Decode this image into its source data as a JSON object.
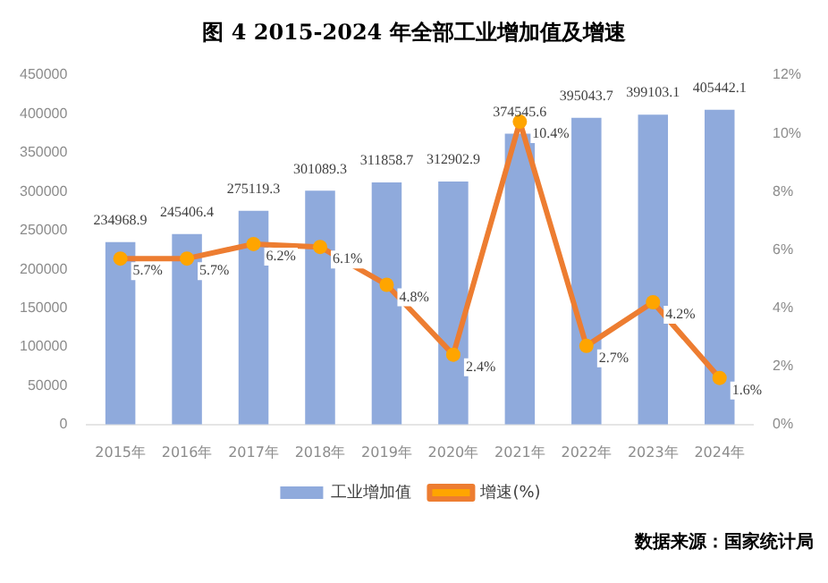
{
  "chart_data": {
    "type": "bar",
    "title": "图 4 2015-2024 年全部工业增加值及增速",
    "categories": [
      "2015年",
      "2016年",
      "2017年",
      "2018年",
      "2019年",
      "2020年",
      "2021年",
      "2022年",
      "2023年",
      "2024年"
    ],
    "series": [
      {
        "name": "工业增加值",
        "color": "#8faadc",
        "values": [
          234968.9,
          245406.4,
          275119.3,
          301089.3,
          311858.7,
          312902.9,
          374545.6,
          395043.7,
          399103.1,
          405442.1
        ]
      },
      {
        "name": "增速(%)",
        "type": "line",
        "axis": "y2",
        "color": "#ed7d31",
        "values": [
          5.7,
          5.7,
          6.2,
          6.1,
          4.8,
          2.4,
          10.4,
          2.7,
          4.2,
          1.6
        ],
        "value_labels": [
          "5.7%",
          "5.7%",
          "6.2%",
          "6.1%",
          "4.8%",
          "2.4%",
          "10.4%",
          "2.7%",
          "4.2%",
          "1.6%"
        ]
      }
    ],
    "ylim": [
      0,
      450000
    ],
    "yticks": [
      0,
      50000,
      100000,
      150000,
      200000,
      250000,
      300000,
      350000,
      400000,
      450000
    ],
    "y2lim": [
      0,
      12
    ],
    "y2ticks": [
      {
        "value": 0,
        "label": "0%"
      },
      {
        "value": 2,
        "label": "2%"
      },
      {
        "value": 4,
        "label": "4%"
      },
      {
        "value": 6,
        "label": "6%"
      },
      {
        "value": 8,
        "label": "8%"
      },
      {
        "value": 10,
        "label": "10%"
      },
      {
        "value": 12,
        "label": "12%"
      }
    ],
    "data_labels": true,
    "marker": "circle",
    "grid": false,
    "legend": "bottom",
    "annotations": [
      "数据来源：国家统计局"
    ]
  }
}
